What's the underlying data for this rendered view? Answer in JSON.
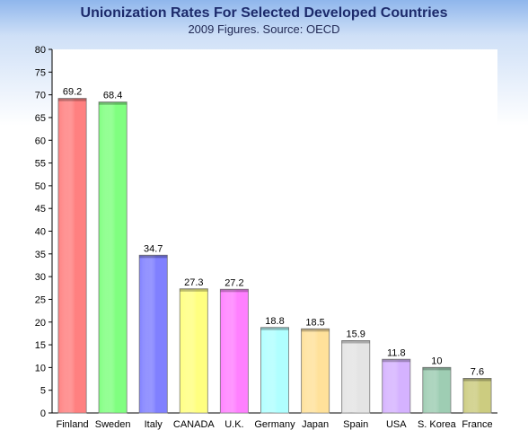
{
  "chart_data": {
    "type": "bar",
    "title": "Unionization Rates For Selected Developed Countries",
    "subtitle": "2009 Figures. Source: OECD",
    "xlabel": "",
    "ylabel": "",
    "ylim": [
      0,
      80
    ],
    "ytick_step": 5,
    "grid": false,
    "categories": [
      "Finland",
      "Sweden",
      "Italy",
      "CANADA",
      "U.K.",
      "Germany",
      "Japan",
      "Spain",
      "USA",
      "S. Korea",
      "France"
    ],
    "values": [
      69.2,
      68.4,
      34.7,
      27.3,
      27.2,
      18.8,
      18.5,
      15.9,
      11.8,
      10,
      7.6
    ],
    "data_labels": [
      "69.2",
      "68.4",
      "34.7",
      "27.3",
      "27.2",
      "18.8",
      "18.5",
      "15.9",
      "11.8",
      "10",
      "7.6"
    ],
    "colors": [
      "#ff8080",
      "#80ff80",
      "#8080ff",
      "#ffff80",
      "#ff80ff",
      "#b0ffff",
      "#ffe19a",
      "#e4e4e4",
      "#d5b2ff",
      "#9ecdb3",
      "#cccc80"
    ]
  }
}
